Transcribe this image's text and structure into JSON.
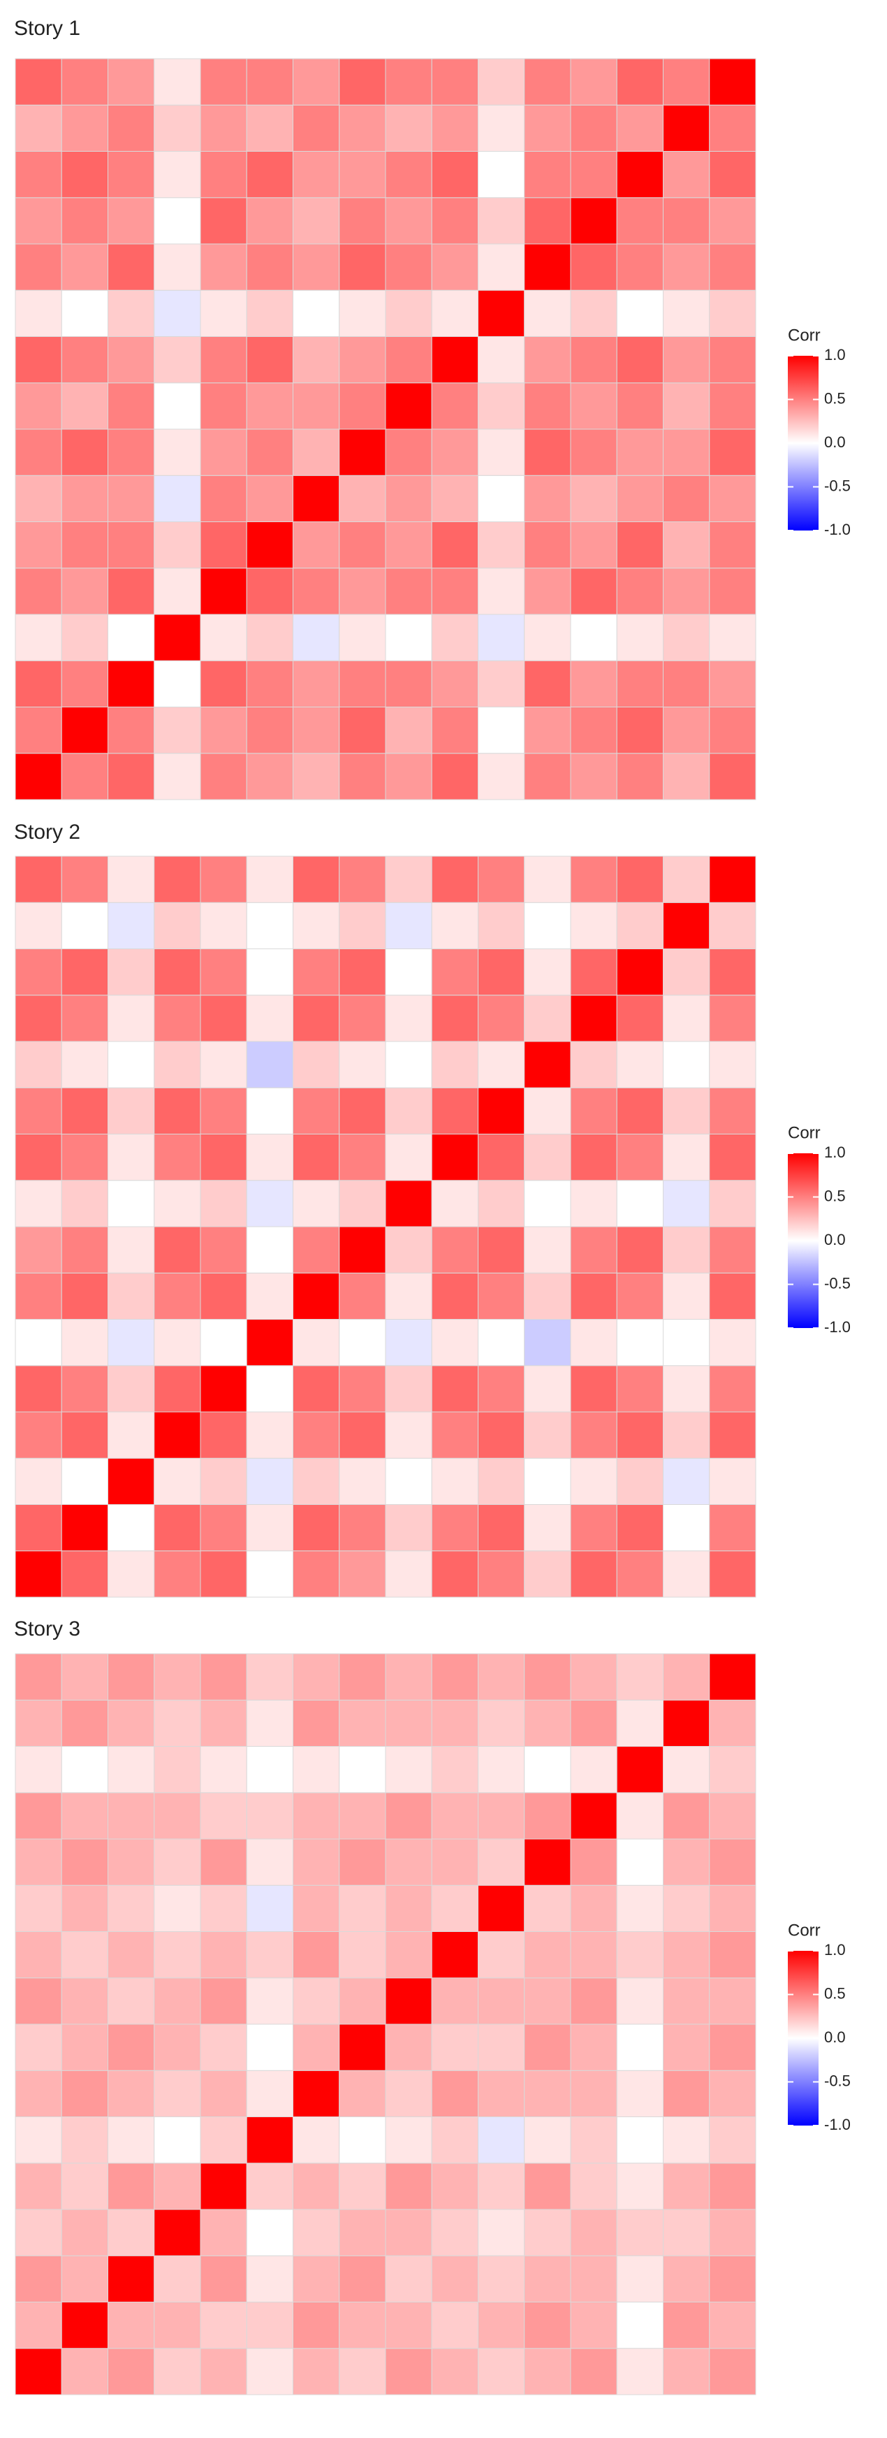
{
  "chart_data": [
    {
      "type": "heatmap",
      "title": "Story 1",
      "legend_title": "Corr",
      "colors": {
        "low": "#0000ff",
        "mid": "#ffffff",
        "high": "#ff0000"
      },
      "zlim": [
        -1,
        1
      ],
      "legend_ticks": [
        {
          "value": 1,
          "label": "1.0"
        },
        {
          "value": 0.5,
          "label": "0.5"
        },
        {
          "value": 0,
          "label": "0.0"
        },
        {
          "value": -0.5,
          "label": "-0.5"
        },
        {
          "value": -1,
          "label": "-1.0"
        }
      ],
      "values": [
        [
          1
        ],
        [
          0.5,
          1
        ],
        [
          0.6,
          0.5,
          1
        ],
        [
          0.1,
          0.2,
          0.0,
          1
        ],
        [
          0.5,
          0.4,
          0.6,
          0.1,
          1
        ],
        [
          0.4,
          0.5,
          0.5,
          0.2,
          0.6,
          1
        ],
        [
          0.3,
          0.4,
          0.4,
          -0.1,
          0.5,
          0.4,
          1
        ],
        [
          0.5,
          0.6,
          0.5,
          0.1,
          0.4,
          0.5,
          0.3,
          1
        ],
        [
          0.4,
          0.3,
          0.5,
          0.0,
          0.5,
          0.4,
          0.4,
          0.5,
          1
        ],
        [
          0.6,
          0.5,
          0.4,
          0.2,
          0.5,
          0.6,
          0.3,
          0.4,
          0.5,
          1
        ],
        [
          0.1,
          0.0,
          0.2,
          -0.1,
          0.1,
          0.2,
          0.0,
          0.1,
          0.2,
          0.1,
          1
        ],
        [
          0.5,
          0.4,
          0.6,
          0.1,
          0.4,
          0.5,
          0.4,
          0.6,
          0.5,
          0.4,
          0.1,
          1
        ],
        [
          0.4,
          0.5,
          0.4,
          0.0,
          0.6,
          0.4,
          0.3,
          0.5,
          0.4,
          0.5,
          0.2,
          0.6,
          1
        ],
        [
          0.5,
          0.6,
          0.5,
          0.1,
          0.5,
          0.6,
          0.4,
          0.4,
          0.5,
          0.6,
          0.0,
          0.5,
          0.5,
          1
        ],
        [
          0.3,
          0.4,
          0.5,
          0.2,
          0.4,
          0.3,
          0.5,
          0.4,
          0.3,
          0.4,
          0.1,
          0.4,
          0.5,
          0.4,
          1
        ],
        [
          0.6,
          0.5,
          0.4,
          0.1,
          0.5,
          0.5,
          0.4,
          0.6,
          0.5,
          0.5,
          0.2,
          0.5,
          0.4,
          0.6,
          0.5,
          1
        ]
      ]
    },
    {
      "type": "heatmap",
      "title": "Story 2",
      "legend_title": "Corr",
      "colors": {
        "low": "#0000ff",
        "mid": "#ffffff",
        "high": "#ff0000"
      },
      "zlim": [
        -1,
        1
      ],
      "legend_ticks": [
        {
          "value": 1,
          "label": "1.0"
        },
        {
          "value": 0.5,
          "label": "0.5"
        },
        {
          "value": 0,
          "label": "0.0"
        },
        {
          "value": -0.5,
          "label": "-0.5"
        },
        {
          "value": -1,
          "label": "-1.0"
        }
      ],
      "values": [
        [
          1
        ],
        [
          0.6,
          1
        ],
        [
          0.1,
          0.0,
          1
        ],
        [
          0.5,
          0.6,
          0.1,
          1
        ],
        [
          0.6,
          0.5,
          0.2,
          0.6,
          1
        ],
        [
          0.0,
          0.1,
          -0.1,
          0.1,
          0.0,
          1
        ],
        [
          0.5,
          0.6,
          0.2,
          0.5,
          0.6,
          0.1,
          1
        ],
        [
          0.4,
          0.5,
          0.1,
          0.6,
          0.5,
          0.0,
          0.5,
          1
        ],
        [
          0.1,
          0.2,
          0.0,
          0.1,
          0.2,
          -0.1,
          0.1,
          0.2,
          1
        ],
        [
          0.6,
          0.5,
          0.1,
          0.5,
          0.6,
          0.1,
          0.6,
          0.5,
          0.1,
          1
        ],
        [
          0.5,
          0.6,
          0.2,
          0.6,
          0.5,
          0.0,
          0.5,
          0.6,
          0.2,
          0.6,
          1
        ],
        [
          0.2,
          0.1,
          0.0,
          0.2,
          0.1,
          -0.2,
          0.2,
          0.1,
          0.0,
          0.2,
          0.1,
          1
        ],
        [
          0.6,
          0.5,
          0.1,
          0.5,
          0.6,
          0.1,
          0.6,
          0.5,
          0.1,
          0.6,
          0.5,
          0.2,
          1
        ],
        [
          0.5,
          0.6,
          0.2,
          0.6,
          0.5,
          0.0,
          0.5,
          0.6,
          0.0,
          0.5,
          0.6,
          0.1,
          0.6,
          1
        ],
        [
          0.1,
          0.0,
          -0.1,
          0.2,
          0.1,
          0.0,
          0.1,
          0.2,
          -0.1,
          0.1,
          0.2,
          0.0,
          0.1,
          0.2,
          1
        ],
        [
          0.6,
          0.5,
          0.1,
          0.6,
          0.5,
          0.1,
          0.6,
          0.5,
          0.2,
          0.6,
          0.5,
          0.1,
          0.5,
          0.6,
          0.2,
          1
        ]
      ]
    },
    {
      "type": "heatmap",
      "title": "Story 3",
      "legend_title": "Corr",
      "colors": {
        "low": "#0000ff",
        "mid": "#ffffff",
        "high": "#ff0000"
      },
      "zlim": [
        -1,
        1
      ],
      "legend_ticks": [
        {
          "value": 1,
          "label": "1.0"
        },
        {
          "value": 0.5,
          "label": "0.5"
        },
        {
          "value": 0,
          "label": "0.0"
        },
        {
          "value": -0.5,
          "label": "-0.5"
        },
        {
          "value": -1,
          "label": "-1.0"
        }
      ],
      "values": [
        [
          1
        ],
        [
          0.3,
          1
        ],
        [
          0.4,
          0.3,
          1
        ],
        [
          0.2,
          0.3,
          0.2,
          1
        ],
        [
          0.3,
          0.2,
          0.4,
          0.3,
          1
        ],
        [
          0.1,
          0.2,
          0.1,
          0.0,
          0.2,
          1
        ],
        [
          0.3,
          0.4,
          0.3,
          0.2,
          0.3,
          0.1,
          1
        ],
        [
          0.2,
          0.3,
          0.4,
          0.3,
          0.2,
          0.0,
          0.3,
          1
        ],
        [
          0.4,
          0.3,
          0.2,
          0.3,
          0.4,
          0.1,
          0.2,
          0.3,
          1
        ],
        [
          0.3,
          0.2,
          0.3,
          0.2,
          0.3,
          0.2,
          0.4,
          0.2,
          0.3,
          1
        ],
        [
          0.2,
          0.3,
          0.2,
          0.1,
          0.2,
          -0.1,
          0.3,
          0.2,
          0.3,
          0.2,
          1
        ],
        [
          0.3,
          0.4,
          0.3,
          0.2,
          0.4,
          0.1,
          0.3,
          0.4,
          0.3,
          0.3,
          0.2,
          1
        ],
        [
          0.4,
          0.3,
          0.3,
          0.3,
          0.2,
          0.2,
          0.3,
          0.3,
          0.4,
          0.3,
          0.3,
          0.4,
          1
        ],
        [
          0.1,
          0.0,
          0.1,
          0.2,
          0.1,
          0.0,
          0.1,
          0.0,
          0.1,
          0.2,
          0.1,
          0.0,
          0.1,
          1
        ],
        [
          0.3,
          0.4,
          0.3,
          0.2,
          0.3,
          0.1,
          0.4,
          0.3,
          0.3,
          0.3,
          0.2,
          0.3,
          0.4,
          0.1,
          1
        ],
        [
          0.4,
          0.3,
          0.4,
          0.3,
          0.4,
          0.2,
          0.3,
          0.4,
          0.3,
          0.4,
          0.3,
          0.4,
          0.3,
          0.2,
          0.3,
          1
        ]
      ]
    }
  ]
}
